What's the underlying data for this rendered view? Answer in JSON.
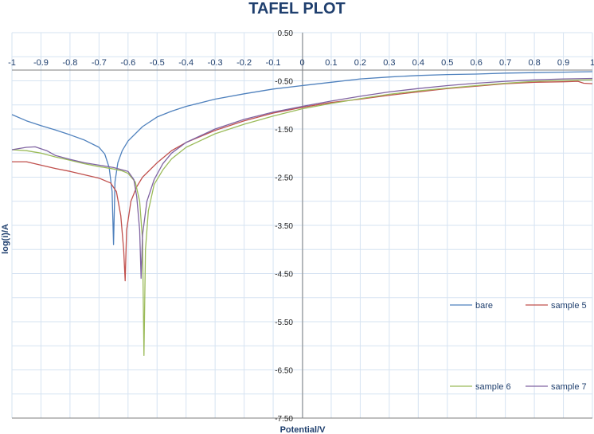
{
  "chart_data": {
    "type": "line",
    "title": "TAFEL PLOT",
    "xlabel": "Potential/V",
    "ylabel": "log(i)/A",
    "xlim": [
      -1,
      1
    ],
    "ylim": [
      -7.5,
      0.5
    ],
    "x_ticks": [
      "-1",
      "-0.9",
      "-0.8",
      "-0.7",
      "-0.6",
      "-0.5",
      "-0.4",
      "-0.3",
      "-0.2",
      "-0.1",
      "0",
      "0.1",
      "0.2",
      "0.3",
      "0.4",
      "0.5",
      "0.6",
      "0.7",
      "0.8",
      "0.9",
      "1"
    ],
    "y_ticks": [
      "0.50",
      "-0.50",
      "-1.50",
      "-2.50",
      "-3.50",
      "-4.50",
      "-5.50",
      "-6.50",
      "-7.50"
    ],
    "grid": true,
    "legend_position": "bottom-right",
    "series": [
      {
        "name": "bare",
        "color": "#4f81bd",
        "points": [
          [
            -1.0,
            -1.2
          ],
          [
            -0.95,
            -1.33
          ],
          [
            -0.9,
            -1.43
          ],
          [
            -0.85,
            -1.52
          ],
          [
            -0.8,
            -1.62
          ],
          [
            -0.75,
            -1.73
          ],
          [
            -0.7,
            -1.88
          ],
          [
            -0.68,
            -2.02
          ],
          [
            -0.665,
            -2.3
          ],
          [
            -0.655,
            -2.8
          ],
          [
            -0.65,
            -3.9
          ],
          [
            -0.645,
            -2.6
          ],
          [
            -0.635,
            -2.2
          ],
          [
            -0.62,
            -1.95
          ],
          [
            -0.6,
            -1.75
          ],
          [
            -0.55,
            -1.45
          ],
          [
            -0.5,
            -1.25
          ],
          [
            -0.45,
            -1.13
          ],
          [
            -0.4,
            -1.03
          ],
          [
            -0.3,
            -0.88
          ],
          [
            -0.2,
            -0.77
          ],
          [
            -0.1,
            -0.67
          ],
          [
            0.0,
            -0.6
          ],
          [
            0.1,
            -0.53
          ],
          [
            0.2,
            -0.46
          ],
          [
            0.3,
            -0.42
          ],
          [
            0.4,
            -0.39
          ],
          [
            0.5,
            -0.37
          ],
          [
            0.6,
            -0.36
          ],
          [
            0.7,
            -0.34
          ],
          [
            0.8,
            -0.33
          ],
          [
            0.9,
            -0.32
          ],
          [
            1.0,
            -0.31
          ]
        ]
      },
      {
        "name": "sample 5",
        "color": "#c0504d",
        "points": [
          [
            -1.0,
            -2.18
          ],
          [
            -0.95,
            -2.18
          ],
          [
            -0.9,
            -2.25
          ],
          [
            -0.85,
            -2.32
          ],
          [
            -0.8,
            -2.38
          ],
          [
            -0.75,
            -2.45
          ],
          [
            -0.7,
            -2.52
          ],
          [
            -0.66,
            -2.62
          ],
          [
            -0.64,
            -2.8
          ],
          [
            -0.625,
            -3.3
          ],
          [
            -0.615,
            -4.0
          ],
          [
            -0.61,
            -4.65
          ],
          [
            -0.605,
            -3.6
          ],
          [
            -0.59,
            -3.0
          ],
          [
            -0.57,
            -2.7
          ],
          [
            -0.55,
            -2.5
          ],
          [
            -0.5,
            -2.2
          ],
          [
            -0.45,
            -1.95
          ],
          [
            -0.4,
            -1.78
          ],
          [
            -0.3,
            -1.53
          ],
          [
            -0.2,
            -1.33
          ],
          [
            -0.1,
            -1.17
          ],
          [
            0.0,
            -1.05
          ],
          [
            0.1,
            -0.95
          ],
          [
            0.2,
            -0.88
          ],
          [
            0.3,
            -0.8
          ],
          [
            0.4,
            -0.73
          ],
          [
            0.5,
            -0.66
          ],
          [
            0.6,
            -0.61
          ],
          [
            0.7,
            -0.56
          ],
          [
            0.8,
            -0.53
          ],
          [
            0.9,
            -0.52
          ],
          [
            0.95,
            -0.51
          ],
          [
            0.97,
            -0.55
          ],
          [
            1.0,
            -0.56
          ]
        ]
      },
      {
        "name": "sample 6",
        "color": "#9bbb59",
        "points": [
          [
            -1.0,
            -1.93
          ],
          [
            -0.95,
            -1.95
          ],
          [
            -0.9,
            -2.0
          ],
          [
            -0.85,
            -2.08
          ],
          [
            -0.8,
            -2.15
          ],
          [
            -0.75,
            -2.22
          ],
          [
            -0.7,
            -2.28
          ],
          [
            -0.65,
            -2.33
          ],
          [
            -0.62,
            -2.37
          ],
          [
            -0.6,
            -2.42
          ],
          [
            -0.575,
            -2.6
          ],
          [
            -0.56,
            -3.0
          ],
          [
            -0.55,
            -3.8
          ],
          [
            -0.545,
            -6.2
          ],
          [
            -0.54,
            -4.0
          ],
          [
            -0.53,
            -3.2
          ],
          [
            -0.51,
            -2.65
          ],
          [
            -0.48,
            -2.35
          ],
          [
            -0.45,
            -2.12
          ],
          [
            -0.4,
            -1.88
          ],
          [
            -0.3,
            -1.6
          ],
          [
            -0.2,
            -1.4
          ],
          [
            -0.1,
            -1.23
          ],
          [
            0.0,
            -1.08
          ],
          [
            0.1,
            -0.97
          ],
          [
            0.2,
            -0.87
          ],
          [
            0.3,
            -0.78
          ],
          [
            0.4,
            -0.71
          ],
          [
            0.5,
            -0.65
          ],
          [
            0.6,
            -0.6
          ],
          [
            0.7,
            -0.55
          ],
          [
            0.8,
            -0.51
          ],
          [
            0.9,
            -0.49
          ],
          [
            1.0,
            -0.48
          ]
        ]
      },
      {
        "name": "sample 7",
        "color": "#8064a2",
        "points": [
          [
            -1.0,
            -1.93
          ],
          [
            -0.95,
            -1.88
          ],
          [
            -0.92,
            -1.87
          ],
          [
            -0.88,
            -1.95
          ],
          [
            -0.85,
            -2.05
          ],
          [
            -0.8,
            -2.13
          ],
          [
            -0.75,
            -2.2
          ],
          [
            -0.7,
            -2.25
          ],
          [
            -0.65,
            -2.3
          ],
          [
            -0.6,
            -2.38
          ],
          [
            -0.58,
            -2.55
          ],
          [
            -0.57,
            -2.9
          ],
          [
            -0.56,
            -3.6
          ],
          [
            -0.555,
            -4.6
          ],
          [
            -0.55,
            -3.7
          ],
          [
            -0.535,
            -3.0
          ],
          [
            -0.51,
            -2.55
          ],
          [
            -0.48,
            -2.22
          ],
          [
            -0.45,
            -2.0
          ],
          [
            -0.4,
            -1.78
          ],
          [
            -0.3,
            -1.5
          ],
          [
            -0.2,
            -1.3
          ],
          [
            -0.1,
            -1.15
          ],
          [
            0.0,
            -1.03
          ],
          [
            0.1,
            -0.92
          ],
          [
            0.2,
            -0.82
          ],
          [
            0.3,
            -0.73
          ],
          [
            0.4,
            -0.66
          ],
          [
            0.5,
            -0.6
          ],
          [
            0.6,
            -0.55
          ],
          [
            0.7,
            -0.51
          ],
          [
            0.8,
            -0.48
          ],
          [
            0.9,
            -0.46
          ],
          [
            1.0,
            -0.45
          ]
        ]
      }
    ]
  }
}
